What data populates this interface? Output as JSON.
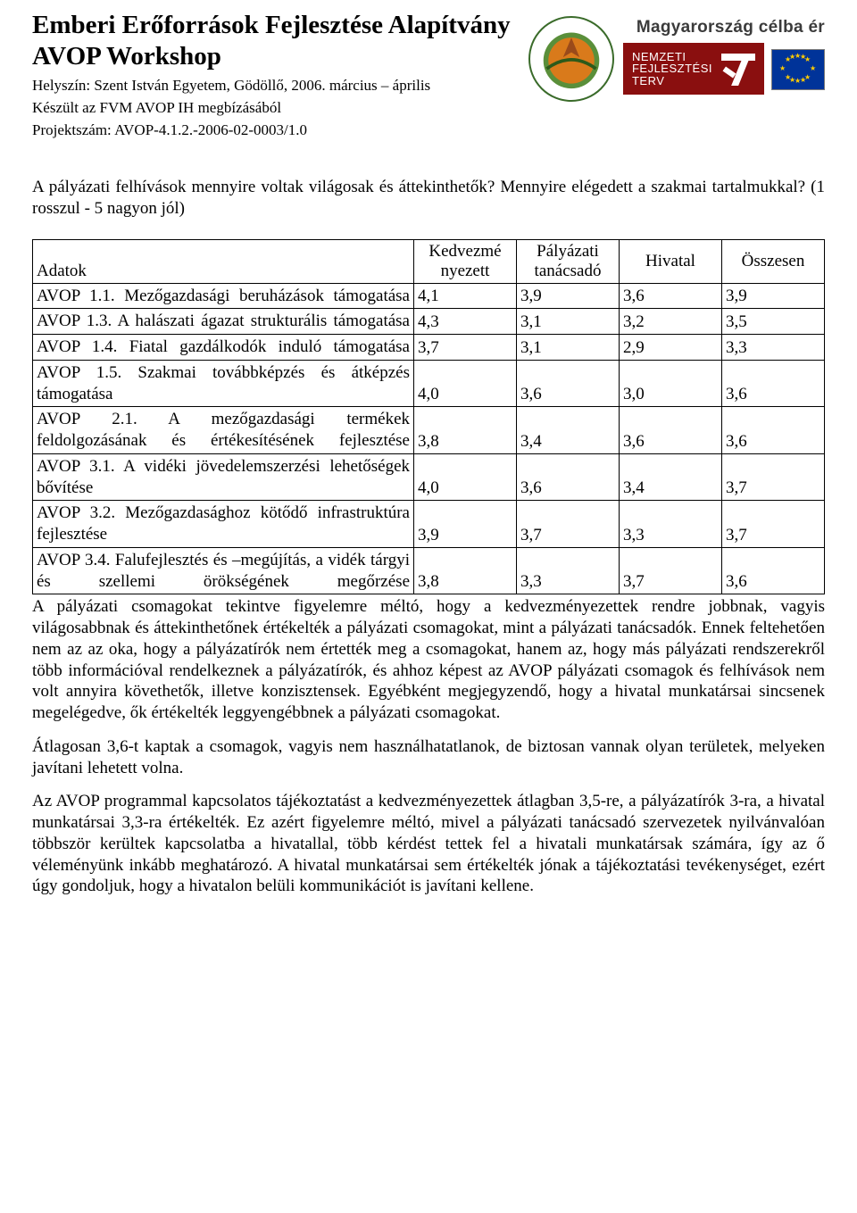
{
  "header": {
    "title_line1": "Emberi Erőforrások Fejlesztése Alapítvány",
    "title_line2": "AVOP Workshop",
    "meta_line1": "Helyszín: Szent István Egyetem, Gödöllő, 2006. március – április",
    "meta_line2": "Készült az FVM AVOP IH megbízásából",
    "meta_line3": "Projektszám: AVOP-4.1.2.-2006-02-0003/1.0",
    "banner_top": "Magyarország célba ér",
    "nft_line1": "NEMZETI",
    "nft_line2": "FEJLESZTÉSI",
    "nft_line3": "TERV"
  },
  "intro": "A pályázati felhívások mennyire voltak világosak és áttekinthetők? Mennyire elégedett a szakmai tartalmukkal? (1 rosszul - 5 nagyon jól)",
  "table": {
    "columns": [
      "Adatok",
      "Kedvezmé­nyezett",
      "Pályázati tanácsadó",
      "Hivatal",
      "Összesen"
    ],
    "col_widths": [
      "auto",
      "106px",
      "106px",
      "106px",
      "106px"
    ],
    "header_align": "center",
    "label_align": "justify",
    "num_align": "left",
    "border_color": "#000000",
    "font_size_pt": 14,
    "rows": [
      {
        "label": "AVOP 1.1. Mezőgazdasági beruházások támogatása",
        "v": [
          "4,1",
          "3,9",
          "3,6",
          "3,9"
        ]
      },
      {
        "label": "AVOP 1.3. A halászati ágazat strukturális támogatása",
        "v": [
          "4,3",
          "3,1",
          "3,2",
          "3,5"
        ]
      },
      {
        "label": "AVOP 1.4. Fiatal gazdálkodók induló támogatása",
        "v": [
          "3,7",
          "3,1",
          "2,9",
          "3,3"
        ]
      },
      {
        "label": "AVOP 1.5. Szakmai továbbképzés és átképzés támogatása",
        "v": [
          "4,0",
          "3,6",
          "3,0",
          "3,6"
        ]
      },
      {
        "label": "AVOP 2.1. A mezőgazdasági termékek feldolgozásának és értékesítésének fejlesztése",
        "v": [
          "3,8",
          "3,4",
          "3,6",
          "3,6"
        ]
      },
      {
        "label": "AVOP 3.1. A vidéki jövedelemszerzési lehetőségek bővítése",
        "v": [
          "4,0",
          "3,6",
          "3,4",
          "3,7"
        ]
      },
      {
        "label": "AVOP 3.2. Mezőgazdasághoz kötődő infrastruktúra fejlesztése",
        "v": [
          "3,9",
          "3,7",
          "3,3",
          "3,7"
        ]
      },
      {
        "label": "AVOP 3.4. Falufejlesztés és –megújítás, a vidék tárgyi és szellemi örökségének megőrzése",
        "v": [
          "3,8",
          "3,3",
          "3,7",
          "3,6"
        ]
      }
    ]
  },
  "para1": "A pályázati csomagokat tekintve figyelemre méltó, hogy a kedvezményezettek rendre jobbnak, vagyis világosabbnak és áttekinthetőnek értékelték a pályázati csomagokat, mint a pályázati tanácsadók. Ennek feltehetően nem az az oka, hogy a pályázatírók nem értették meg a csomagokat, hanem az, hogy más pályázati rendszerekről több információval rendelkeznek a pályázatírók, és ahhoz képest az AVOP pályázati csomagok és felhívások nem volt annyira követhetők, illetve konzisztensek. Egyébként megjegyzendő, hogy a hivatal munkatársai sincsenek megelégedve, ők értékelték leggyengébbnek a pályázati csomagokat.",
  "para2": "Átlagosan 3,6-t kaptak a csomagok, vagyis nem használhatatlanok, de biztosan vannak olyan területek, melyeken javítani lehetett volna.",
  "para3": "Az AVOP programmal kapcsolatos tájékoztatást a kedvezményezettek átlagban 3,5-re, a pályázatírók 3-ra, a hivatal munkatársai 3,3-ra értékelték. Ez azért figyelemre méltó, mivel a pályázati tanácsadó szervezetek nyilvánvalóan többször kerültek kapcsolatba a hivatallal, több kérdést tettek fel a hivatali munkatársak számára, így az ő véleményünk inkább meghatározó. A hivatal munkatársai sem értékelték jónak a tájékoztatási tevékenységet, ezért úgy gondoljuk, hogy a hivatalon belüli kommunikációt is javítani kellene.",
  "colors": {
    "text": "#000000",
    "background": "#ffffff",
    "border": "#000000",
    "nft_bg": "#8a0f0f",
    "nft_fg": "#ffffff",
    "eu_bg": "#003399",
    "eu_star": "#ffcc00",
    "logo_border": "#3a6b2a",
    "banner_text": "#3b3b3b"
  }
}
